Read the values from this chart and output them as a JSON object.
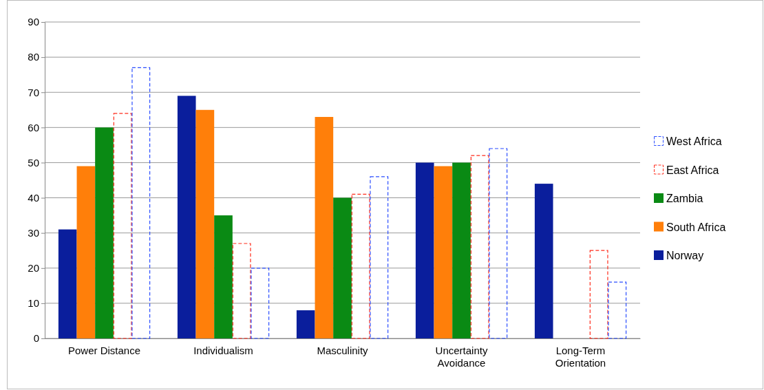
{
  "chart_data": {
    "type": "bar",
    "categories": [
      "Power Distance",
      "Individualism",
      "Masculinity",
      "Uncertainty Avoidance",
      "Long-Term Orientation"
    ],
    "series": [
      {
        "name": "Norway",
        "color": "#0a1e9c",
        "values": [
          31,
          69,
          8,
          50,
          44
        ]
      },
      {
        "name": "South Africa",
        "color": "#ff7f0a",
        "values": [
          49,
          65,
          63,
          49,
          null
        ]
      },
      {
        "name": "Zambia",
        "color": "#0a8a14",
        "values": [
          60,
          35,
          40,
          50,
          null
        ]
      },
      {
        "name": "East Africa",
        "color": "#ff2a1a",
        "values": [
          64,
          27,
          41,
          52,
          25
        ],
        "line_style": "dashed"
      },
      {
        "name": "West Africa",
        "color": "#2a4dff",
        "values": [
          77,
          20,
          46,
          54,
          16
        ],
        "line_style": "dashed"
      }
    ],
    "ylim": [
      0,
      90
    ],
    "yticks": [
      0,
      10,
      20,
      30,
      40,
      50,
      60,
      70,
      80,
      90
    ],
    "grid": "y",
    "legend": "right"
  }
}
